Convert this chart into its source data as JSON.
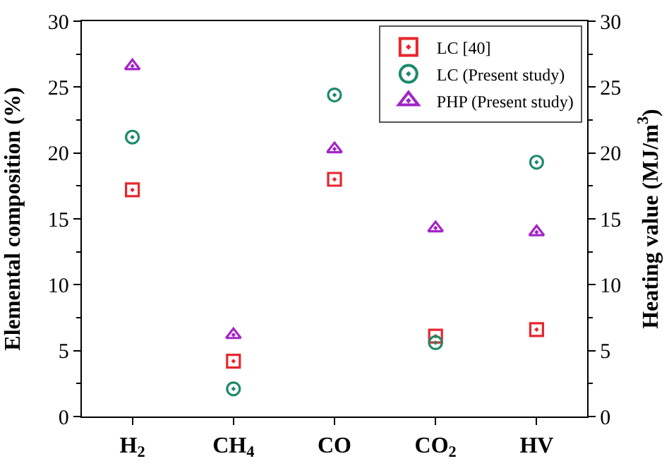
{
  "chart_data": {
    "type": "scatter",
    "categories": [
      "H$_{2}$",
      "CH$_{4}$",
      "CO",
      "CO$_{2}$",
      "HV"
    ],
    "ylabel": "Elemental composition (%)",
    "y2label": "Heating value (MJ/m$^{3}$)",
    "ylim": [
      0,
      30
    ],
    "yticks": [
      0,
      5,
      10,
      15,
      20,
      25,
      30
    ],
    "y2lim": [
      0,
      30
    ],
    "y2ticks": [
      0,
      5,
      10,
      15,
      20,
      25,
      30
    ],
    "legend": "top right",
    "series": [
      {
        "name": "LC [40]",
        "color": "#e8262e",
        "marker": "square",
        "values": [
          17.2,
          4.2,
          18.0,
          6.1,
          6.6
        ]
      },
      {
        "name": "LC (Present study)",
        "color": "#1e8a6a",
        "marker": "circle",
        "values": [
          21.2,
          2.1,
          24.4,
          5.6,
          19.3
        ]
      },
      {
        "name": "PHP (Present study)",
        "color": "#a324c9",
        "marker": "triangle",
        "values": [
          26.6,
          6.2,
          20.3,
          14.3,
          14.0
        ]
      }
    ]
  }
}
